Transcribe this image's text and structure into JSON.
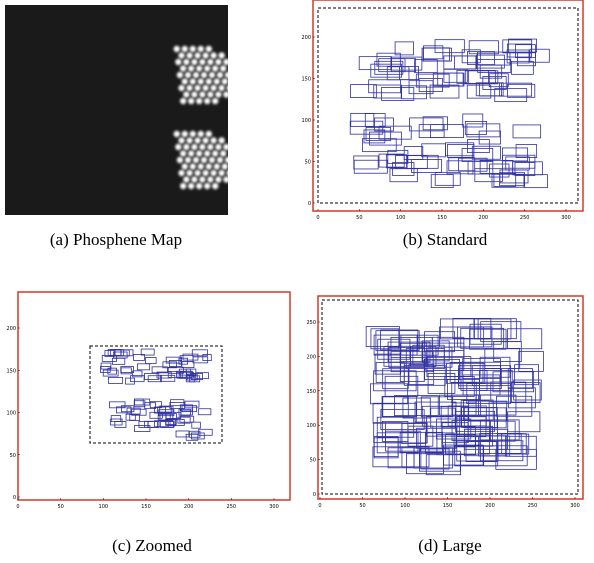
{
  "panels": [
    {
      "caption": "(a) Phosphene Map"
    },
    {
      "caption": "(b) Standard",
      "xticks": [
        0,
        50,
        100,
        150,
        200,
        250,
        300
      ],
      "yticks": [
        0,
        50,
        100,
        150,
        200
      ]
    },
    {
      "caption": "(c) Zoomed",
      "xticks": [
        0,
        50,
        100,
        150,
        200,
        250,
        300
      ],
      "yticks": [
        0,
        50,
        100,
        150,
        200
      ]
    },
    {
      "caption": "(d) Large",
      "xticks": [
        0,
        50,
        100,
        150,
        200,
        250,
        300
      ],
      "yticks": [
        0,
        50,
        100,
        150,
        200,
        250
      ]
    }
  ]
}
